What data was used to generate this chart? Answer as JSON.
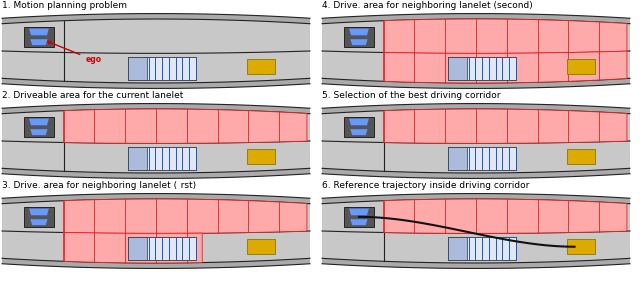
{
  "titles": [
    "1. Motion planning problem",
    "2. Driveable area for the current lanelet",
    "3. Drive. area for neighboring lanelet (  rst)",
    "4. Drive. area for neighboring lanelet (second)",
    "5. Selection of the best driving corridor",
    "6. Reference trajectory inside driving corridor"
  ],
  "bg_color": "#ffffff",
  "road_color": "#c8c8c8",
  "road_dark": "#aaaaaa",
  "lane_line_color": "#222222",
  "red_fill": "#ffaaaa",
  "red_line": "#dd2222",
  "ego_arrow_color": "#cc0000",
  "ego_text_color": "#cc0000",
  "obstacle_color": "#ddaa00",
  "car_body": "#555555",
  "car_window": "#6699ff",
  "truck_body": "#ddddee",
  "truck_stripe": "#3366cc"
}
